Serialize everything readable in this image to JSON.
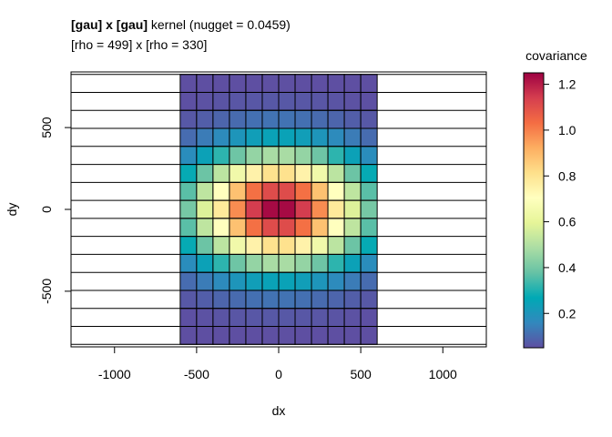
{
  "title": {
    "part1": "[gau] x [gau]",
    "part2": " kernel (nugget = 0.0459)",
    "subtitle": "[rho = 499] x [rho = 330]"
  },
  "colors": {
    "palette": [
      "#5E4FA2",
      "#3288BD",
      "#00A9B5",
      "#66C2A5",
      "#ABDDA4",
      "#E6F598",
      "#FFFFBF",
      "#FEE08B",
      "#FDAE61",
      "#F46D43",
      "#D53E4F",
      "#9E0142"
    ]
  },
  "chart_data": {
    "type": "heatmap",
    "xlabel": "dx",
    "ylabel": "dy",
    "xlim": [
      -1265,
      1265
    ],
    "ylim": [
      -840,
      840
    ],
    "x_ticks": [
      -1000,
      -500,
      0,
      500,
      1000
    ],
    "x_tick_labels": [
      "-1000",
      "-500",
      "0",
      "500",
      "1000"
    ],
    "y_ticks": [
      -500,
      0,
      500
    ],
    "y_tick_labels": [
      "-500",
      "0",
      "500"
    ],
    "cell_size_x": 100,
    "cell_size_y": 110,
    "x_centers": [
      -550,
      -450,
      -350,
      -250,
      -150,
      -50,
      50,
      150,
      250,
      350,
      450,
      550
    ],
    "y_centers": [
      770,
      660,
      550,
      440,
      330,
      220,
      110,
      0,
      -110,
      -220,
      -330,
      -440,
      -550,
      -660,
      -770
    ],
    "kernel": {
      "nugget": 0.0459,
      "rho_x": 499,
      "rho_y": 330,
      "psill": 1.2
    },
    "legend": {
      "title": "covariance",
      "min": 0.05,
      "max": 1.25,
      "ticks": [
        0.2,
        0.4,
        0.6,
        0.8,
        1.0,
        1.2
      ],
      "tick_labels": [
        "0.2",
        "0.4",
        "0.6",
        "0.8",
        "1.0",
        "1.2"
      ]
    },
    "grid": false
  }
}
